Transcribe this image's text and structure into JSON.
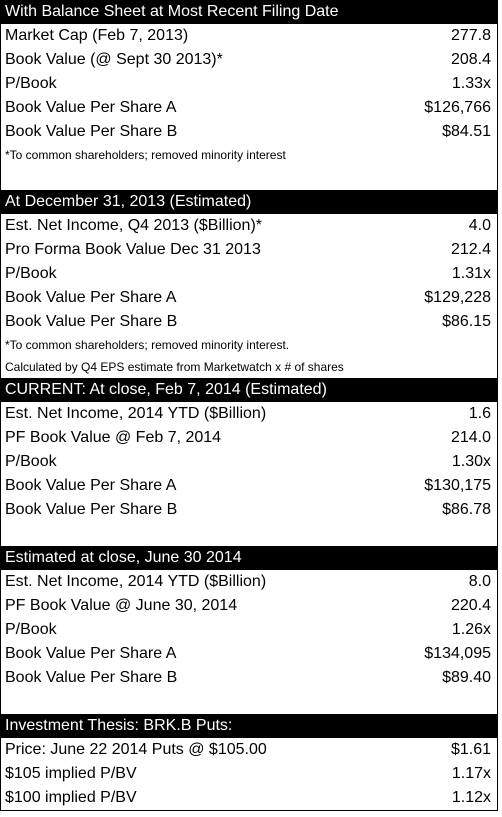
{
  "sections": [
    {
      "header": "With Balance Sheet at Most Recent Filing Date",
      "rows": [
        {
          "label": "Market Cap (Feb 7, 2013)",
          "value": "277.8"
        },
        {
          "label": "Book Value (@ Sept 30 2013)*",
          "value": "208.4"
        },
        {
          "label": "P/Book",
          "value": "1.33x"
        },
        {
          "label": "Book Value Per Share A",
          "value": "$126,766"
        },
        {
          "label": "Book Value Per Share B",
          "value": "$84.51"
        }
      ],
      "notes": [
        "*To common shareholders; removed minority interest"
      ]
    },
    {
      "header": "At December 31, 2013 (Estimated)",
      "rows": [
        {
          "label": "Est. Net Income, Q4 2013 ($Billion)*",
          "value": "4.0"
        },
        {
          "label": "Pro Forma Book Value Dec 31 2013",
          "value": "212.4"
        },
        {
          "label": "P/Book",
          "value": "1.31x"
        },
        {
          "label": "Book Value Per Share A",
          "value": "$129,228"
        },
        {
          "label": "Book Value Per Share B",
          "value": "$86.15"
        }
      ],
      "notes": [
        "*To common shareholders; removed minority interest.",
        "Calculated by Q4 EPS estimate from Marketwatch x # of shares"
      ]
    },
    {
      "header": "CURRENT: At close, Feb 7, 2014 (Estimated)",
      "rows": [
        {
          "label": "Est. Net Income, 2014 YTD ($Billion)",
          "value": "1.6"
        },
        {
          "label": "PF Book Value @ Feb 7, 2014",
          "value": "214.0"
        },
        {
          "label": "P/Book",
          "value": "1.30x"
        },
        {
          "label": "Book Value Per Share A",
          "value": "$130,175"
        },
        {
          "label": "Book Value Per Share B",
          "value": "$86.78"
        }
      ],
      "notes": []
    },
    {
      "header": "Estimated at close, June 30 2014",
      "rows": [
        {
          "label": "Est. Net Income, 2014 YTD ($Billion)",
          "value": "8.0"
        },
        {
          "label": "PF Book Value @ June 30, 2014",
          "value": "220.4"
        },
        {
          "label": "P/Book",
          "value": "1.26x"
        },
        {
          "label": "Book Value Per Share A",
          "value": "$134,095"
        },
        {
          "label": "Book Value Per Share B",
          "value": "$89.40"
        }
      ],
      "notes": []
    },
    {
      "header": "Investment Thesis: BRK.B Puts:",
      "rows": [
        {
          "label": "Price: June 22 2014 Puts @ $105.00",
          "value": "$1.61"
        },
        {
          "label": "$105 implied P/BV",
          "value": "1.17x"
        },
        {
          "label": "$100 implied P/BV",
          "value": "1.12x"
        }
      ],
      "notes": []
    }
  ]
}
